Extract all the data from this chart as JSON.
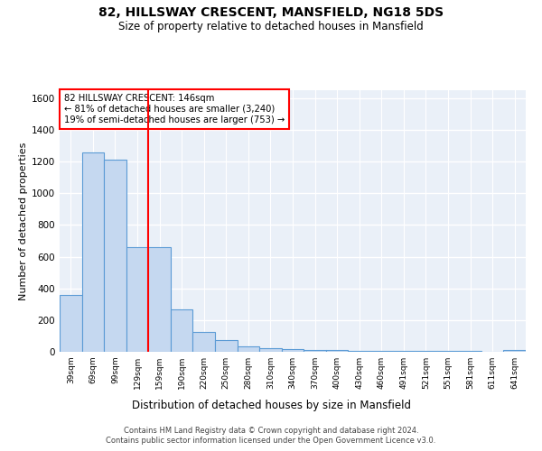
{
  "title1": "82, HILLSWAY CRESCENT, MANSFIELD, NG18 5DS",
  "title2": "Size of property relative to detached houses in Mansfield",
  "xlabel": "Distribution of detached houses by size in Mansfield",
  "ylabel": "Number of detached properties",
  "categories": [
    "39sqm",
    "69sqm",
    "99sqm",
    "129sqm",
    "159sqm",
    "190sqm",
    "220sqm",
    "250sqm",
    "280sqm",
    "310sqm",
    "340sqm",
    "370sqm",
    "400sqm",
    "430sqm",
    "460sqm",
    "491sqm",
    "521sqm",
    "551sqm",
    "581sqm",
    "611sqm",
    "641sqm"
  ],
  "values": [
    360,
    1255,
    1210,
    660,
    660,
    265,
    125,
    75,
    35,
    20,
    15,
    10,
    10,
    8,
    8,
    5,
    5,
    3,
    3,
    2,
    10
  ],
  "bar_color": "#c5d8f0",
  "bar_edge_color": "#5b9bd5",
  "bg_color": "#eaf0f8",
  "grid_color": "#ffffff",
  "annotation_title": "82 HILLSWAY CRESCENT: 146sqm",
  "annotation_line1": "← 81% of detached houses are smaller (3,240)",
  "annotation_line2": "19% of semi-detached houses are larger (753) →",
  "footer1": "Contains HM Land Registry data © Crown copyright and database right 2024.",
  "footer2": "Contains public sector information licensed under the Open Government Licence v3.0.",
  "ylim": [
    0,
    1650
  ],
  "yticks": [
    0,
    200,
    400,
    600,
    800,
    1000,
    1200,
    1400,
    1600
  ]
}
